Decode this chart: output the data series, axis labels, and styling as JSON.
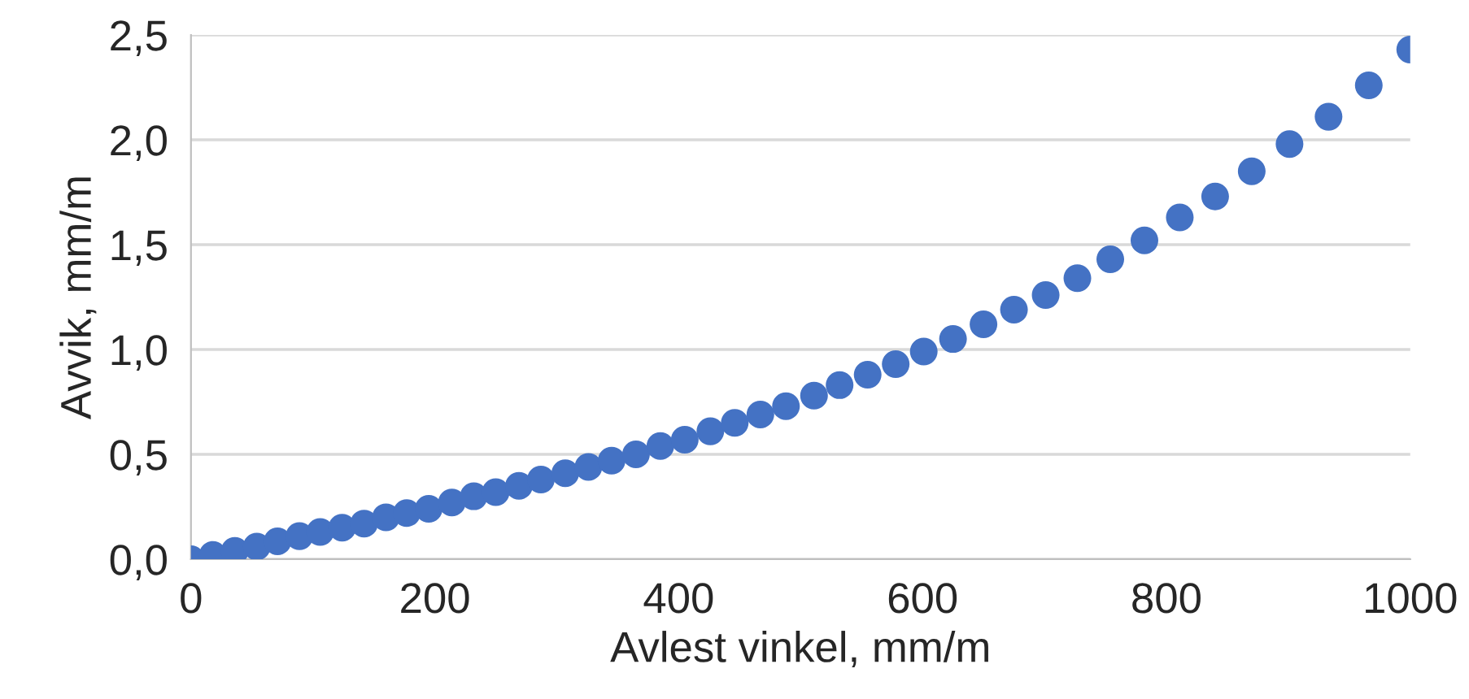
{
  "chart_data": {
    "type": "scatter",
    "xlabel": "Avlest vinkel, mm/m",
    "ylabel": "Avvik, mm/m",
    "series": [
      {
        "color": "#4472c4",
        "x": [
          0,
          18,
          36,
          54,
          71,
          89,
          106,
          124,
          142,
          160,
          177,
          195,
          214,
          232,
          250,
          269,
          287,
          307,
          326,
          345,
          365,
          385,
          405,
          426,
          446,
          467,
          488,
          511,
          532,
          555,
          578,
          601,
          625,
          650,
          675,
          701,
          727,
          754,
          782,
          811,
          840,
          870,
          901,
          933,
          966,
          1000
        ],
        "values": [
          0,
          0.02,
          0.04,
          0.06,
          0.085,
          0.11,
          0.13,
          0.15,
          0.17,
          0.2,
          0.22,
          0.24,
          0.27,
          0.3,
          0.32,
          0.35,
          0.38,
          0.41,
          0.44,
          0.47,
          0.5,
          0.54,
          0.57,
          0.61,
          0.65,
          0.69,
          0.73,
          0.78,
          0.83,
          0.88,
          0.93,
          0.99,
          1.05,
          1.12,
          1.19,
          1.26,
          1.34,
          1.43,
          1.52,
          1.63,
          1.73,
          1.85,
          1.98,
          2.11,
          2.26,
          2.43
        ]
      }
    ],
    "xlim": [
      0,
      1000
    ],
    "xticks": [
      0,
      200,
      400,
      600,
      800,
      1000
    ],
    "ylim": [
      0,
      2.5
    ],
    "yticks": [
      {
        "value": 0,
        "label": "0,0"
      },
      {
        "value": 0.5,
        "label": "0,5"
      },
      {
        "value": 1.0,
        "label": "1,0"
      },
      {
        "value": 1.5,
        "label": "1,5"
      },
      {
        "value": 2.0,
        "label": "2,0"
      },
      {
        "value": 2.5,
        "label": "2,5"
      }
    ],
    "grid": "y",
    "marker": "circle",
    "legend": false
  }
}
